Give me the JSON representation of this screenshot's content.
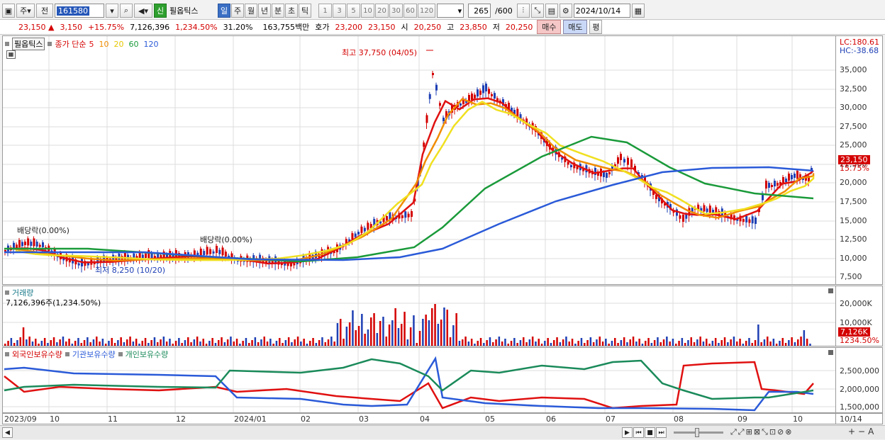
{
  "toolbar": {
    "week_btn": "주",
    "prev_btn": "전",
    "code": "161580",
    "new_badge": "신",
    "stock_name": "필옵틱스",
    "periods": [
      "일",
      "주",
      "월",
      "년",
      "분",
      "초",
      "틱"
    ],
    "active_period": "일",
    "intervals": [
      "1",
      "3",
      "5",
      "10",
      "20",
      "30",
      "60",
      "120"
    ],
    "count": "265",
    "count_max": "/600",
    "date": "2024/10/14"
  },
  "quote": {
    "price": "23,150",
    "arrow": "▲",
    "change": "3,150",
    "change_pct": "+15.75%",
    "volume": "7,126,396",
    "vol_ratio": "1,234.50%",
    "turnover": "31.20%",
    "amount": "163,755백만",
    "bid_label": "호가",
    "bid1": "23,200",
    "bid2": "23,150",
    "open_label": "시",
    "open": "20,250",
    "high_label": "고",
    "high": "23,850",
    "low_label": "저",
    "low": "20,250",
    "buy_btn": "매수",
    "sell_btn": "매도",
    "eval_btn": "평"
  },
  "price_panel": {
    "name_tag": "필옵틱스",
    "ma_label": "종가 단순",
    "ma_periods": [
      "5",
      "10",
      "20",
      "60",
      "120"
    ],
    "lc": "LC:180.61",
    "hc": "HC:-38.68",
    "y_ticks": [
      "35,000",
      "32,500",
      "30,000",
      "27,500",
      "25,000",
      "22,500",
      "20,000",
      "17,500",
      "15,000",
      "12,500",
      "10,000",
      "7,500"
    ],
    "price_tag": "23,150",
    "pct_tag": "15.75%",
    "annot_high": "최고 37,750 (04/05)",
    "annot_low": "최저 8,250 (10/20)",
    "annot_div1": "배당락(0.00%)",
    "annot_div2": "배당락(0.00%)"
  },
  "volume_panel": {
    "title": "거래량",
    "value": "7,126,396주(1,234.50%)",
    "y_ticks": [
      "20,000K",
      "10,000K"
    ],
    "vol_tag": "7,126K",
    "pct_tag": "1234.50%"
  },
  "holdings_panel": {
    "legend": [
      "외국인보유수량",
      "기관보유수량",
      "개인보유수량"
    ],
    "y_ticks": [
      "2,500,000",
      "2,000,000",
      "1,500,000"
    ]
  },
  "x_axis": [
    "2023/09",
    "10",
    "11",
    "12",
    "2024/01",
    "02",
    "03",
    "04",
    "05",
    "06",
    "07",
    "08",
    "09",
    "10",
    "10/14"
  ],
  "colors": {
    "up": "#d40000",
    "down": "#1e3fb4",
    "ma5": "#e01010",
    "ma10": "#f08c00",
    "ma20": "#f0e020",
    "ma60": "#1a9a3a",
    "ma120": "#2a5ad8"
  }
}
